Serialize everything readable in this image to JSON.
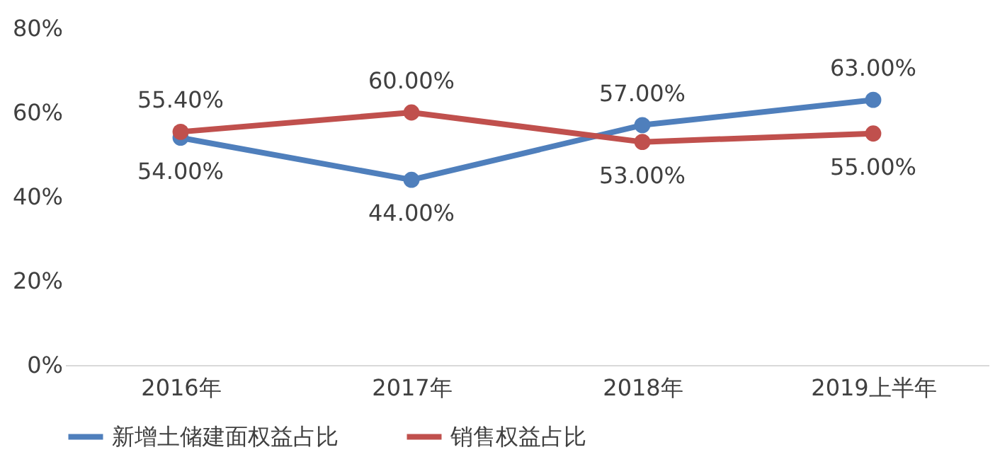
{
  "chart_data": {
    "type": "line",
    "categories": [
      "2016年",
      "2017年",
      "2018年",
      "2019上半年"
    ],
    "series": [
      {
        "name": "新增土储建面权益占比",
        "color": "#4f7fbc",
        "values": [
          54,
          44,
          57,
          63
        ],
        "value_labels": [
          "54.00%",
          "44.00%",
          "57.00%",
          "63.00%"
        ]
      },
      {
        "name": "销售权益占比",
        "color": "#c0504d",
        "values": [
          55.4,
          60,
          53,
          55
        ],
        "value_labels": [
          "55.40%",
          "60.00%",
          "53.00%",
          "55.00%"
        ]
      }
    ],
    "ylim": [
      0,
      80
    ],
    "yticks": [
      {
        "value": 0,
        "label": "0%"
      },
      {
        "value": 20,
        "label": "20%"
      },
      {
        "value": 40,
        "label": "40%"
      },
      {
        "value": 60,
        "label": "60%"
      },
      {
        "value": 80,
        "label": "80%"
      }
    ],
    "grid": false,
    "legend": "bottom",
    "marker": "circle",
    "line_style": "solid"
  }
}
